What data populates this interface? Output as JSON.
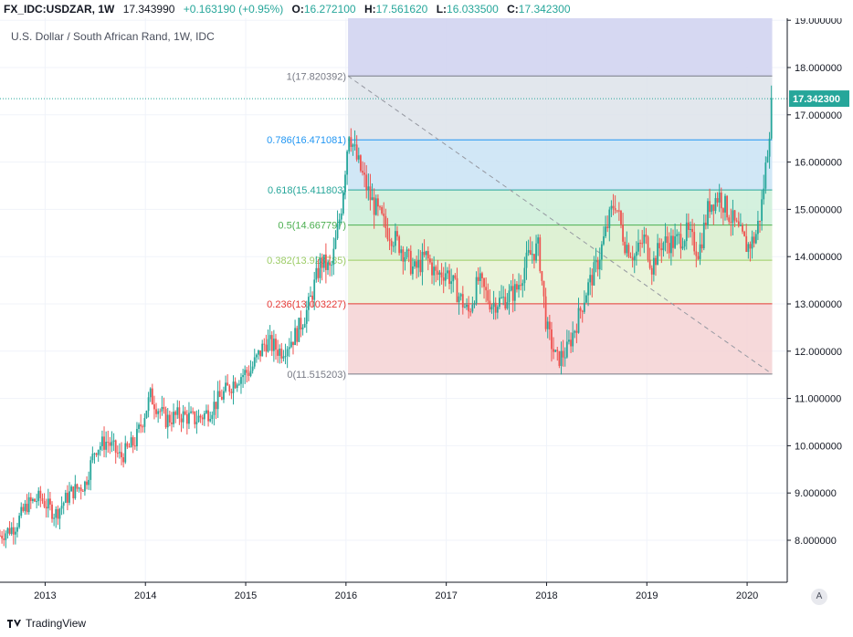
{
  "header": {
    "symbol": "FX_IDC:USDZAR, 1W",
    "last": "17.343990",
    "change": "+0.163190 (+0.95%)",
    "o_label": "O:",
    "o_value": "16.272100",
    "h_label": "H:",
    "h_value": "17.561620",
    "l_label": "L:",
    "l_value": "16.033500",
    "c_label": "C:",
    "c_value": "17.342300"
  },
  "overlay_title": "U.S. Dollar / South African Rand, 1W, IDC",
  "footer": {
    "brand": "TradingView"
  },
  "auto_scale_button": "A",
  "colors": {
    "up": "#26a69a",
    "down": "#ef5350",
    "price_tag": "#26a69a",
    "grid": "#f0f3fa"
  },
  "chart_data": {
    "type": "candlestick",
    "title": "U.S. Dollar / South African Rand, 1W, IDC",
    "ylim": [
      7.0,
      19.0
    ],
    "xlim": [
      2012.55,
      2020.4
    ],
    "y_ticks": [
      "8.000000",
      "9.000000",
      "10.000000",
      "11.000000",
      "12.000000",
      "13.000000",
      "14.000000",
      "15.000000",
      "16.000000",
      "17.000000",
      "18.000000",
      "19.000000"
    ],
    "x_ticks": [
      "2013",
      "2014",
      "2015",
      "2016",
      "2017",
      "2018",
      "2019",
      "2020"
    ],
    "last_price_label": "17.342300",
    "last_price": 17.3423,
    "fibonacci": {
      "start_time": 2016.02,
      "end_time": 2020.25,
      "levels": [
        {
          "label": "1(17.820392)",
          "value": 17.820392,
          "color": "#787b86",
          "fill": "#dcdcdc"
        },
        {
          "label": "0.786(16.471081)",
          "value": 16.471081,
          "color": "#2196f3",
          "fill": "#dde3ea"
        },
        {
          "label": "0.618(15.411803)",
          "value": 15.411803,
          "color": "#26a69a",
          "fill": "#c9e3f4"
        },
        {
          "label": "0.5(14.667797)",
          "value": 14.667797,
          "color": "#4caf50",
          "fill": "#cdeed8"
        },
        {
          "label": "0.382(13.923785)",
          "value": 13.923785,
          "color": "#9ccc65",
          "fill": "#d8efcd"
        },
        {
          "label": "0.236(13.003227)",
          "value": 13.003227,
          "color": "#e53935",
          "fill": "#e6f2d4"
        },
        {
          "label": "0(11.515203)",
          "value": 11.515203,
          "color": "#787b86",
          "fill": "#f4d2d3"
        }
      ],
      "top_fill": "#d1d4f1",
      "trendline": {
        "from": [
          2016.02,
          17.820392
        ],
        "to": [
          2020.25,
          11.515203
        ]
      }
    },
    "anchors": [
      [
        2012.55,
        8.1
      ],
      [
        2012.7,
        8.3
      ],
      [
        2012.82,
        8.75
      ],
      [
        2012.95,
        8.9
      ],
      [
        2013.1,
        8.55
      ],
      [
        2013.25,
        9.0
      ],
      [
        2013.4,
        9.2
      ],
      [
        2013.5,
        9.95
      ],
      [
        2013.62,
        10.1
      ],
      [
        2013.75,
        9.75
      ],
      [
        2013.9,
        10.1
      ],
      [
        2014.05,
        11.05
      ],
      [
        2014.2,
        10.55
      ],
      [
        2014.35,
        10.65
      ],
      [
        2014.5,
        10.55
      ],
      [
        2014.62,
        10.7
      ],
      [
        2014.78,
        11.1
      ],
      [
        2014.92,
        11.45
      ],
      [
        2015.05,
        11.6
      ],
      [
        2015.2,
        12.2
      ],
      [
        2015.35,
        12.0
      ],
      [
        2015.5,
        12.35
      ],
      [
        2015.62,
        12.9
      ],
      [
        2015.75,
        13.9
      ],
      [
        2015.85,
        13.7
      ],
      [
        2015.95,
        15.0
      ],
      [
        2016.03,
        16.7
      ],
      [
        2016.1,
        16.1
      ],
      [
        2016.25,
        15.2
      ],
      [
        2016.4,
        14.6
      ],
      [
        2016.55,
        14.2
      ],
      [
        2016.68,
        13.7
      ],
      [
        2016.8,
        14.0
      ],
      [
        2016.9,
        13.6
      ],
      [
        2017.0,
        13.7
      ],
      [
        2017.12,
        13.2
      ],
      [
        2017.22,
        12.8
      ],
      [
        2017.32,
        13.5
      ],
      [
        2017.45,
        13.0
      ],
      [
        2017.58,
        13.1
      ],
      [
        2017.7,
        13.3
      ],
      [
        2017.82,
        14.0
      ],
      [
        2017.92,
        14.2
      ],
      [
        2018.0,
        12.5
      ],
      [
        2018.1,
        11.8
      ],
      [
        2018.2,
        12.0
      ],
      [
        2018.3,
        12.6
      ],
      [
        2018.4,
        13.3
      ],
      [
        2018.5,
        13.8
      ],
      [
        2018.6,
        14.6
      ],
      [
        2018.68,
        15.2
      ],
      [
        2018.78,
        14.3
      ],
      [
        2018.88,
        14.0
      ],
      [
        2018.98,
        14.4
      ],
      [
        2019.05,
        13.8
      ],
      [
        2019.15,
        14.3
      ],
      [
        2019.28,
        14.3
      ],
      [
        2019.4,
        14.5
      ],
      [
        2019.52,
        14.1
      ],
      [
        2019.62,
        15.1
      ],
      [
        2019.72,
        15.3
      ],
      [
        2019.82,
        14.9
      ],
      [
        2019.92,
        14.5
      ],
      [
        2020.0,
        14.2
      ],
      [
        2020.08,
        14.4
      ],
      [
        2020.14,
        15.0
      ],
      [
        2020.19,
        16.0
      ],
      [
        2020.25,
        17.34
      ]
    ]
  }
}
